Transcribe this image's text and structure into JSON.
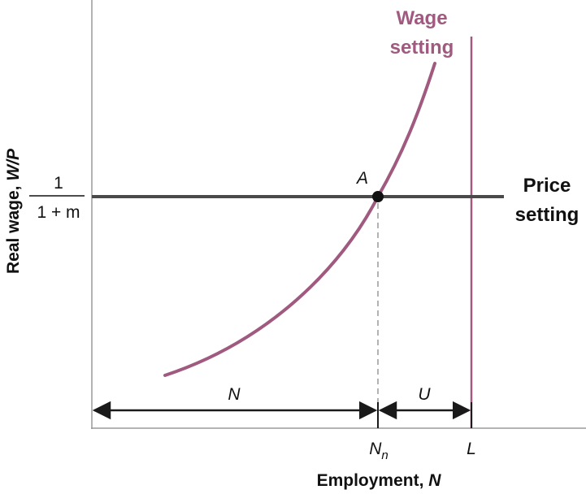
{
  "diagram": {
    "y_axis_label": "Real wage, ",
    "y_axis_var": "W/P",
    "x_axis_label": "Employment, ",
    "x_axis_var": "N",
    "price_level_numerator": "1",
    "price_level_denominator": "1 + m",
    "price_setting_line1": "Price",
    "price_setting_line2": "setting",
    "wage_setting_line1": "Wage",
    "wage_setting_line2": "setting",
    "equilibrium_label": "A",
    "employment_span_label": "N",
    "unemployment_span_label": "U",
    "natural_employment_main": "N",
    "natural_employment_sub": "n",
    "labor_force_label": "L"
  },
  "colors": {
    "wage_curve": "#a05a80",
    "price_line": "#4a4a4a",
    "axis": "#9a9a9a",
    "dashed": "#9a9a9a",
    "arrows": "#1a1a1a",
    "text": "#111111"
  }
}
